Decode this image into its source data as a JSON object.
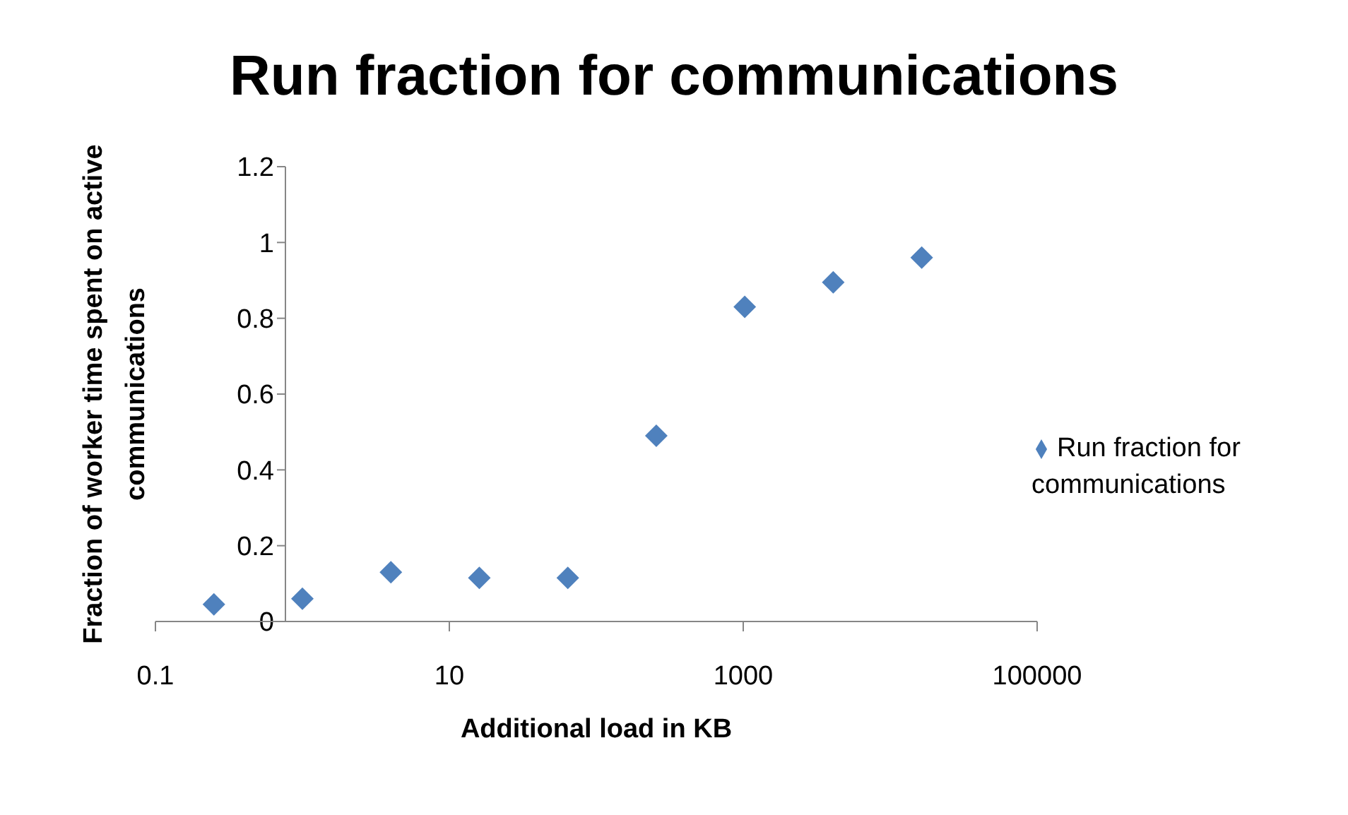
{
  "chart_data": {
    "type": "scatter",
    "title": "Run fraction for communications",
    "xlabel": "Additional load in KB",
    "ylabel": "Fraction of worker time spent on active communications",
    "x": [
      0.25,
      1,
      4,
      16,
      64,
      256,
      1024,
      4096,
      16384
    ],
    "series": [
      {
        "name": "Run fraction for communications",
        "color": "#4f81bd",
        "values": [
          0.045,
          0.06,
          0.13,
          0.115,
          0.115,
          0.49,
          0.83,
          0.895,
          0.96
        ]
      }
    ],
    "log": "x",
    "xlim": [
      0.1,
      100000
    ],
    "xticks": [
      0.1,
      10,
      1000,
      100000
    ],
    "ylim": [
      0,
      1.2
    ],
    "yticks": [
      0,
      0.2,
      0.4,
      0.6,
      0.8,
      1,
      1.2
    ],
    "grid": false,
    "legend": "right",
    "marker": "diamond"
  }
}
